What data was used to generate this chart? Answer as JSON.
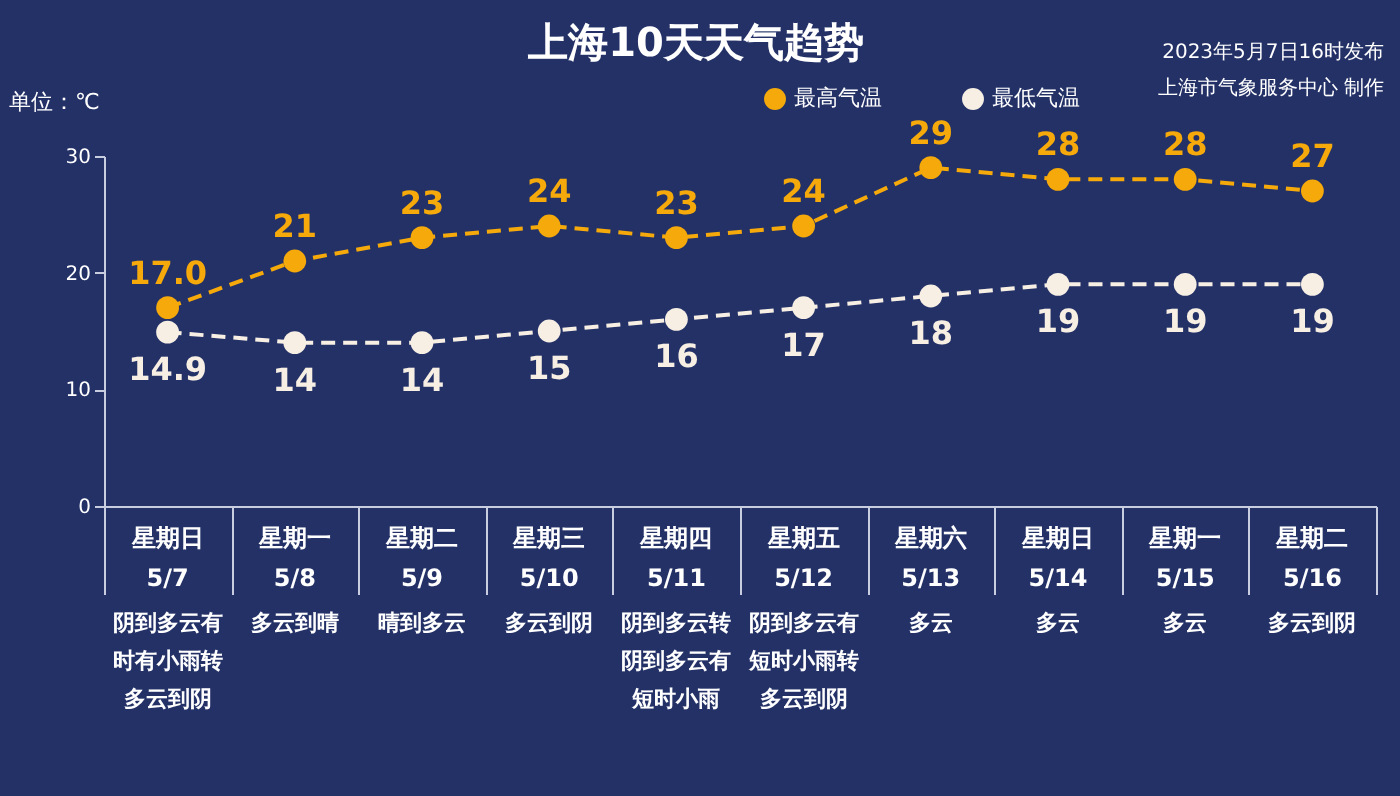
{
  "chart_data": {
    "type": "line",
    "title": "上海10天天气趋势",
    "ylabel": "单位：℃",
    "annotations": [
      "2023年5月7日16时发布",
      "上海市气象服务中心 制作",
      "阴到多云有时有小雨转多云到阴",
      "多云到晴",
      "晴到多云",
      "多云到阴",
      "阴到多云转阴到多云有短时小雨",
      "阴到多云有短时小雨转多云到阴",
      "多云",
      "多云",
      "多云",
      "多云到阴"
    ],
    "categories": [
      "星期日\n5/7",
      "星期一\n5/8",
      "星期二\n5/9",
      "星期三\n5/10",
      "星期四\n5/11",
      "星期五\n5/12",
      "星期六\n5/13",
      "星期日\n5/14",
      "星期一\n5/15",
      "星期二\n5/16"
    ],
    "series": [
      {
        "name": "最高气温",
        "color": "#f5a90a",
        "values": [
          17.0,
          21,
          23,
          24,
          23,
          24,
          29,
          28,
          28,
          27
        ],
        "value_labels": [
          "17.0",
          "21",
          "23",
          "24",
          "23",
          "24",
          "29",
          "28",
          "28",
          "27"
        ]
      },
      {
        "name": "最低气温",
        "color": "#f7efe4",
        "values": [
          14.9,
          14,
          14,
          15,
          16,
          17,
          18,
          19,
          19,
          19
        ],
        "value_labels": [
          "14.9",
          "14",
          "14",
          "15",
          "16",
          "17",
          "18",
          "19",
          "19",
          "19"
        ]
      }
    ],
    "ylim": [
      0,
      30
    ],
    "yticks": [
      0,
      10,
      20,
      30
    ],
    "grid": false,
    "legend": "top right",
    "marker": "circle",
    "line_style": "dashed"
  }
}
